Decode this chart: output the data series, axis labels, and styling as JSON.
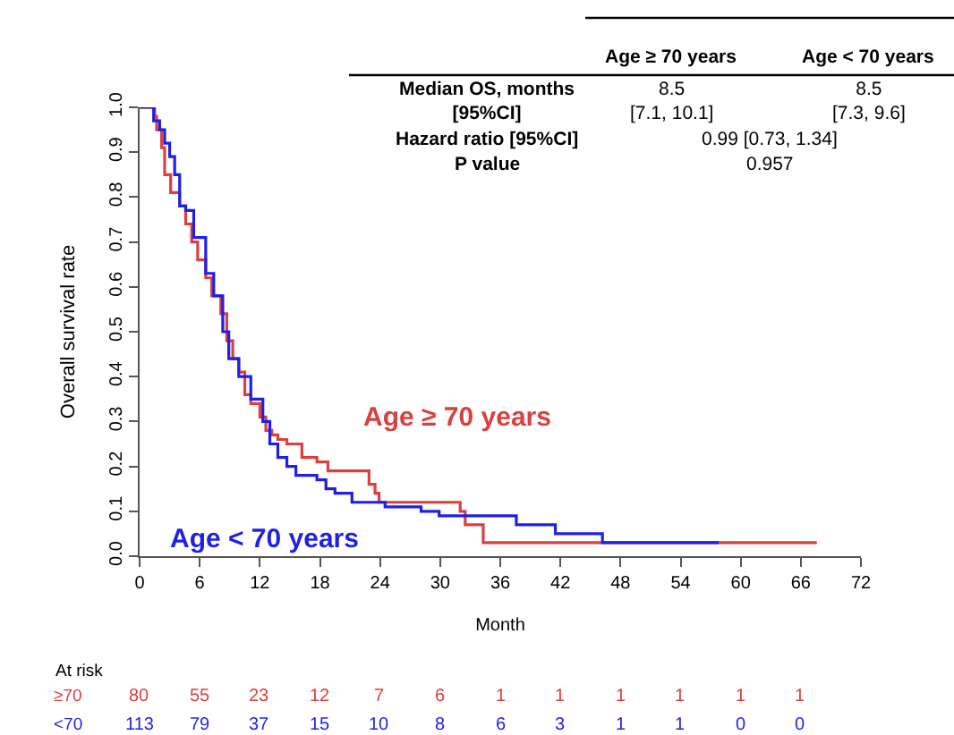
{
  "chart_data": {
    "type": "step",
    "xlabel": "Month",
    "ylabel": "Overall survival rate",
    "xlim": [
      0,
      72
    ],
    "xticks": [
      0,
      6,
      12,
      18,
      24,
      30,
      36,
      42,
      48,
      54,
      60,
      66,
      72
    ],
    "ylim": [
      0,
      1
    ],
    "yticks": [
      {
        "value": 0,
        "label": "0.0"
      },
      {
        "value": 0.1,
        "label": "0.1"
      },
      {
        "value": 0.2,
        "label": "0.2"
      },
      {
        "value": 0.3,
        "label": "0.3"
      },
      {
        "value": 0.4,
        "label": "0.4"
      },
      {
        "value": 0.5,
        "label": "0.5"
      },
      {
        "value": 0.6,
        "label": "0.6"
      },
      {
        "value": 0.7,
        "label": "0.7"
      },
      {
        "value": 0.8,
        "label": "0.8"
      },
      {
        "value": 0.9,
        "label": "0.9"
      },
      {
        "value": 1,
        "label": "1.0"
      }
    ],
    "legend": false,
    "marker": "none",
    "line_style": "solid",
    "series": [
      {
        "name": "Age ≥ 70 years",
        "color": "#d9413f",
        "x": [
          0,
          1.0,
          1.5,
          1.7,
          2.2,
          2.5,
          3.1,
          4.0,
          4.6,
          5.2,
          5.8,
          6.6,
          7.2,
          8.1,
          8.7,
          9.3,
          9.9,
          10.5,
          11.1,
          12.0,
          12.6,
          13.2,
          13.8,
          14.7,
          16.2,
          17.7,
          18.8,
          22.9,
          23.5,
          23.9,
          32.0,
          32.5,
          34.3,
          67.6
        ],
        "values": [
          1.0,
          1.0,
          0.98,
          0.95,
          0.91,
          0.85,
          0.81,
          0.78,
          0.74,
          0.7,
          0.66,
          0.62,
          0.58,
          0.54,
          0.48,
          0.44,
          0.41,
          0.36,
          0.34,
          0.31,
          0.28,
          0.27,
          0.26,
          0.25,
          0.22,
          0.21,
          0.19,
          0.16,
          0.14,
          0.12,
          0.1,
          0.07,
          0.03,
          0.03
        ]
      },
      {
        "name": "Age < 70 years",
        "color": "#1f1fe6",
        "x": [
          0,
          1.2,
          1.4,
          2.0,
          2.5,
          3.0,
          3.5,
          4.0,
          4.6,
          5.4,
          6.6,
          7.4,
          8.3,
          8.9,
          9.9,
          11.1,
          12.3,
          13.0,
          13.8,
          14.7,
          15.6,
          17.7,
          18.6,
          19.5,
          21.2,
          24.5,
          28.1,
          29.9,
          37.6,
          41.5,
          46.2,
          57.8
        ],
        "values": [
          1.0,
          1.0,
          0.97,
          0.95,
          0.92,
          0.89,
          0.85,
          0.78,
          0.77,
          0.71,
          0.63,
          0.58,
          0.5,
          0.44,
          0.4,
          0.35,
          0.3,
          0.25,
          0.22,
          0.2,
          0.18,
          0.17,
          0.15,
          0.14,
          0.12,
          0.11,
          0.1,
          0.09,
          0.07,
          0.05,
          0.03,
          0.03
        ]
      }
    ],
    "annotations": [
      "Age ≥ 70 years",
      "Age < 70 years",
      "Median OS, months\n[95%CI]",
      "8.5\n[7.1, 10.1]",
      "8.5\n[7.3, 9.6]",
      "Hazard ratio [95%CI]",
      "0.99 [0.73, 1.34]",
      "P value",
      "0.957",
      "At risk",
      "≥70",
      "<70",
      "80",
      "55",
      "23",
      "12",
      "7",
      "6",
      "1",
      "1",
      "1",
      "1",
      "1",
      "1",
      "113",
      "79",
      "37",
      "15",
      "10",
      "8",
      "6",
      "3",
      "1",
      "1",
      "0",
      "0"
    ]
  }
}
